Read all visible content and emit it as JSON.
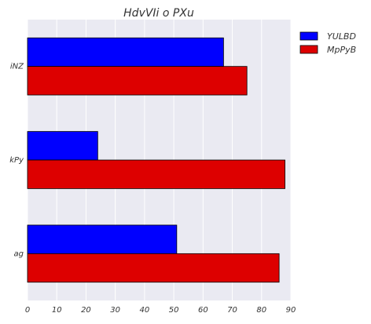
{
  "chart_data": {
    "type": "bar",
    "orientation": "horizontal",
    "title": "HdvVIi o PXu",
    "xlabel": "",
    "ylabel": "",
    "categories": [
      "iNZ",
      "kPy",
      "ag"
    ],
    "series": [
      {
        "name": "YULBD",
        "values": [
          67,
          24,
          51
        ],
        "color": "#0000ff"
      },
      {
        "name": "MpPyB",
        "values": [
          75,
          88,
          86
        ],
        "color": "#dd0000"
      }
    ],
    "xlim": [
      0,
      90
    ],
    "xticks": [
      0,
      10,
      20,
      30,
      40,
      50,
      60,
      70,
      80,
      90
    ],
    "grid": true,
    "legend_position": "top-right outside",
    "background_color": "#eaeaf2"
  }
}
